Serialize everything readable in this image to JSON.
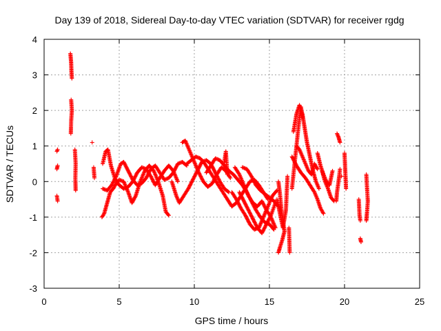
{
  "chart_data": {
    "type": "scatter",
    "title": "Day 139 of 2018, Sidereal Day-to-day VTEC variation (SDTVAR) for receiver rgdg",
    "xlabel": "GPS time / hours",
    "ylabel": "SDTVAR / TECUs",
    "xlim": [
      0,
      25
    ],
    "ylim": [
      -3,
      4
    ],
    "xticks": [
      0,
      5,
      10,
      15,
      20,
      25
    ],
    "yticks": [
      -3,
      -2,
      -1,
      0,
      1,
      2,
      3,
      4
    ],
    "grid": true,
    "marker": "+",
    "color": "#ff0000",
    "series": [
      {
        "name": "SDTVAR",
        "tracks": [
          [
            [
              0.85,
              0.85
            ],
            [
              0.9,
              0.9
            ]
          ],
          [
            [
              0.85,
              0.35
            ],
            [
              0.9,
              0.45
            ]
          ],
          [
            [
              0.85,
              -0.4
            ],
            [
              0.9,
              -0.55
            ]
          ],
          [
            [
              1.75,
              3.6
            ],
            [
              1.8,
              3.35
            ],
            [
              1.82,
              3.1
            ],
            [
              1.85,
              2.9
            ]
          ],
          [
            [
              1.8,
              2.3
            ],
            [
              1.85,
              2.0
            ],
            [
              1.8,
              1.7
            ],
            [
              1.78,
              1.35
            ]
          ],
          [
            [
              2.05,
              0.9
            ],
            [
              2.1,
              0.5
            ],
            [
              2.08,
              0.1
            ],
            [
              2.1,
              -0.25
            ]
          ],
          [
            [
              3.2,
              1.1
            ]
          ],
          [
            [
              3.3,
              0.4
            ],
            [
              3.35,
              0.1
            ]
          ],
          [
            [
              3.85,
              -1.0
            ],
            [
              4.0,
              -0.9
            ],
            [
              4.2,
              -0.6
            ],
            [
              4.4,
              -0.3
            ],
            [
              4.6,
              -0.2
            ],
            [
              4.8,
              -0.05
            ],
            [
              5.0,
              0.05
            ],
            [
              5.3,
              0.0
            ],
            [
              5.6,
              -0.3
            ],
            [
              5.85,
              -0.6
            ],
            [
              6.1,
              -0.4
            ],
            [
              6.4,
              0.0
            ],
            [
              6.7,
              0.3
            ],
            [
              7.0,
              0.45
            ],
            [
              7.3,
              0.3
            ],
            [
              7.6,
              0.0
            ],
            [
              7.9,
              -0.4
            ],
            [
              8.1,
              -0.85
            ],
            [
              8.3,
              -0.95
            ]
          ],
          [
            [
              3.9,
              0.5
            ],
            [
              4.1,
              0.85
            ],
            [
              4.25,
              0.9
            ],
            [
              4.45,
              0.45
            ],
            [
              4.7,
              0.1
            ],
            [
              5.0,
              -0.1
            ],
            [
              5.3,
              -0.2
            ],
            [
              5.6,
              -0.15
            ],
            [
              5.9,
              0.0
            ],
            [
              6.2,
              0.25
            ],
            [
              6.5,
              0.4
            ],
            [
              6.8,
              0.35
            ],
            [
              7.1,
              0.15
            ],
            [
              7.4,
              -0.1
            ],
            [
              7.7,
              0.1
            ],
            [
              8.0,
              0.3
            ],
            [
              8.3,
              0.45
            ],
            [
              8.6,
              0.3
            ],
            [
              8.9,
              0.0
            ]
          ],
          [
            [
              3.9,
              -0.2
            ],
            [
              4.2,
              -0.25
            ],
            [
              4.5,
              -0.1
            ],
            [
              4.8,
              0.15
            ],
            [
              5.1,
              0.5
            ],
            [
              5.3,
              0.55
            ],
            [
              5.6,
              0.3
            ],
            [
              5.9,
              0.05
            ],
            [
              6.2,
              -0.1
            ],
            [
              6.5,
              -0.05
            ],
            [
              6.8,
              0.1
            ],
            [
              7.1,
              0.35
            ],
            [
              7.4,
              0.45
            ],
            [
              7.7,
              0.25
            ],
            [
              8.0,
              0.05
            ],
            [
              8.3,
              0.1
            ],
            [
              8.6,
              0.25
            ],
            [
              8.9,
              0.5
            ],
            [
              9.2,
              0.55
            ],
            [
              9.5,
              0.45
            ]
          ],
          [
            [
              8.5,
              0.0
            ],
            [
              8.8,
              -0.4
            ],
            [
              9.0,
              -0.6
            ],
            [
              9.3,
              -0.4
            ],
            [
              9.6,
              -0.2
            ],
            [
              9.9,
              0.05
            ],
            [
              10.2,
              0.3
            ],
            [
              10.5,
              0.55
            ],
            [
              10.8,
              0.6
            ],
            [
              11.1,
              0.5
            ],
            [
              11.4,
              0.25
            ],
            [
              11.7,
              0.0
            ],
            [
              12.0,
              -0.2
            ],
            [
              12.3,
              -0.3
            ]
          ],
          [
            [
              9.2,
              1.1
            ],
            [
              9.4,
              1.15
            ],
            [
              9.6,
              0.95
            ],
            [
              9.8,
              0.75
            ],
            [
              10.0,
              0.55
            ],
            [
              10.3,
              0.25
            ],
            [
              10.6,
              0.0
            ],
            [
              10.9,
              -0.15
            ],
            [
              11.2,
              -0.05
            ],
            [
              11.5,
              0.2
            ],
            [
              11.8,
              0.4
            ],
            [
              12.1,
              0.3
            ],
            [
              12.4,
              0.1
            ]
          ],
          [
            [
              9.5,
              0.5
            ],
            [
              9.8,
              0.6
            ],
            [
              10.1,
              0.7
            ],
            [
              10.4,
              0.65
            ],
            [
              10.7,
              0.5
            ],
            [
              11.0,
              0.3
            ],
            [
              11.3,
              0.1
            ],
            [
              11.6,
              -0.1
            ],
            [
              11.9,
              -0.3
            ],
            [
              12.2,
              -0.5
            ],
            [
              12.5,
              -0.7
            ],
            [
              12.8,
              -0.6
            ],
            [
              13.1,
              -0.4
            ],
            [
              13.4,
              -0.2
            ],
            [
              13.7,
              0.0
            ],
            [
              14.0,
              0.05
            ],
            [
              14.3,
              -0.1
            ],
            [
              14.6,
              -0.3
            ],
            [
              14.9,
              -0.5
            ]
          ],
          [
            [
              10.8,
              0.25
            ],
            [
              11.1,
              0.45
            ],
            [
              11.4,
              0.65
            ],
            [
              11.7,
              0.6
            ],
            [
              12.0,
              0.45
            ],
            [
              12.3,
              0.3
            ],
            [
              12.6,
              0.2
            ],
            [
              12.9,
              0.05
            ],
            [
              13.2,
              -0.1
            ],
            [
              13.5,
              -0.3
            ],
            [
              13.8,
              -0.55
            ],
            [
              14.1,
              -0.8
            ],
            [
              14.4,
              -1.0
            ],
            [
              14.7,
              -1.15
            ],
            [
              15.0,
              -1.2
            ],
            [
              15.3,
              -1.35
            ]
          ],
          [
            [
              12.0,
              0.55
            ],
            [
              12.1,
              0.85
            ],
            [
              12.2,
              0.2
            ]
          ],
          [
            [
              12.5,
              -0.3
            ],
            [
              12.8,
              -0.5
            ],
            [
              13.1,
              -0.75
            ],
            [
              13.4,
              -0.95
            ],
            [
              13.7,
              -1.2
            ],
            [
              14.0,
              -1.35
            ],
            [
              14.3,
              -1.3
            ],
            [
              14.6,
              -1.0
            ],
            [
              14.9,
              -0.7
            ],
            [
              15.2,
              -0.4
            ],
            [
              15.5,
              -0.25
            ]
          ],
          [
            [
              12.7,
              0.4
            ],
            [
              13.0,
              0.2
            ],
            [
              13.3,
              -0.1
            ],
            [
              13.6,
              -0.4
            ],
            [
              13.9,
              -0.6
            ],
            [
              14.2,
              -0.7
            ],
            [
              14.5,
              -0.55
            ],
            [
              14.8,
              -0.8
            ],
            [
              15.1,
              -1.0
            ],
            [
              15.4,
              -1.3
            ]
          ],
          [
            [
              13.0,
              -0.3
            ],
            [
              13.3,
              -0.55
            ],
            [
              13.6,
              -0.8
            ],
            [
              13.9,
              -1.05
            ],
            [
              14.2,
              -1.3
            ],
            [
              14.5,
              -1.45
            ],
            [
              14.8,
              -1.2
            ],
            [
              15.1,
              -0.95
            ],
            [
              15.4,
              -0.6
            ]
          ],
          [
            [
              13.2,
              0.4
            ],
            [
              13.5,
              0.35
            ],
            [
              13.8,
              0.15
            ],
            [
              14.1,
              -0.1
            ],
            [
              14.4,
              -0.25
            ],
            [
              14.7,
              -0.35
            ],
            [
              15.0,
              -0.45
            ],
            [
              15.3,
              -0.55
            ],
            [
              15.6,
              -0.7
            ]
          ],
          [
            [
              15.6,
              0.0
            ],
            [
              15.7,
              -0.35
            ],
            [
              15.8,
              -0.8
            ],
            [
              15.9,
              -1.1
            ],
            [
              16.0,
              -1.4
            ],
            [
              15.85,
              -1.65
            ],
            [
              15.7,
              -1.85
            ],
            [
              15.6,
              -2.0
            ]
          ],
          [
            [
              15.5,
              -0.5
            ],
            [
              15.7,
              -0.9
            ],
            [
              15.9,
              -1.3
            ],
            [
              16.1,
              -0.8
            ],
            [
              16.2,
              0.15
            ]
          ],
          [
            [
              16.3,
              -1.3
            ],
            [
              16.35,
              -2.0
            ]
          ],
          [
            [
              16.5,
              -0.2
            ],
            [
              16.6,
              0.2
            ],
            [
              16.7,
              0.6
            ],
            [
              16.8,
              1.0
            ],
            [
              16.9,
              1.4
            ],
            [
              17.0,
              1.8
            ],
            [
              17.1,
              2.1
            ],
            [
              17.2,
              1.8
            ]
          ],
          [
            [
              16.6,
              1.4
            ],
            [
              16.8,
              1.9
            ],
            [
              17.0,
              2.15
            ],
            [
              17.2,
              1.9
            ],
            [
              17.35,
              1.5
            ],
            [
              17.5,
              1.1
            ],
            [
              17.7,
              0.7
            ],
            [
              17.9,
              0.3
            ],
            [
              18.1,
              0.0
            ],
            [
              18.3,
              -0.2
            ]
          ],
          [
            [
              16.8,
              1.0
            ],
            [
              17.0,
              0.9
            ],
            [
              17.2,
              0.7
            ],
            [
              17.4,
              0.5
            ],
            [
              17.6,
              0.3
            ],
            [
              17.8,
              0.2
            ],
            [
              18.0,
              0.5
            ],
            [
              18.2,
              0.35
            ]
          ],
          [
            [
              16.5,
              0.7
            ],
            [
              16.8,
              0.45
            ],
            [
              17.1,
              0.25
            ],
            [
              17.4,
              0.1
            ],
            [
              17.7,
              -0.1
            ],
            [
              18.0,
              -0.3
            ],
            [
              18.2,
              -0.5
            ],
            [
              18.4,
              -0.75
            ],
            [
              18.6,
              -0.9
            ]
          ],
          [
            [
              18.2,
              0.8
            ],
            [
              18.4,
              0.45
            ],
            [
              18.6,
              0.2
            ],
            [
              18.8,
              0.0
            ],
            [
              19.0,
              -0.1
            ],
            [
              19.2,
              0.3
            ]
          ],
          [
            [
              18.5,
              0.3
            ],
            [
              18.7,
              0.0
            ],
            [
              18.9,
              -0.2
            ],
            [
              19.1,
              -0.45
            ],
            [
              19.3,
              -0.55
            ]
          ],
          [
            [
              19.5,
              1.35
            ],
            [
              19.6,
              1.25
            ],
            [
              19.7,
              1.1
            ]
          ],
          [
            [
              19.7,
              0.35
            ],
            [
              19.6,
              0.0
            ],
            [
              19.5,
              -0.3
            ],
            [
              19.45,
              -0.55
            ]
          ],
          [
            [
              19.8,
              0.15
            ]
          ],
          [
            [
              20.0,
              0.8
            ],
            [
              20.05,
              0.3
            ],
            [
              20.1,
              -0.2
            ]
          ],
          [
            [
              20.95,
              -0.5
            ],
            [
              21.0,
              -0.95
            ],
            [
              21.05,
              -1.1
            ]
          ],
          [
            [
              21.05,
              -1.6
            ],
            [
              21.1,
              -1.7
            ]
          ],
          [
            [
              21.45,
              0.2
            ],
            [
              21.5,
              -0.2
            ],
            [
              21.55,
              -0.55
            ],
            [
              21.5,
              -0.85
            ],
            [
              21.45,
              -1.1
            ]
          ]
        ]
      }
    ]
  }
}
